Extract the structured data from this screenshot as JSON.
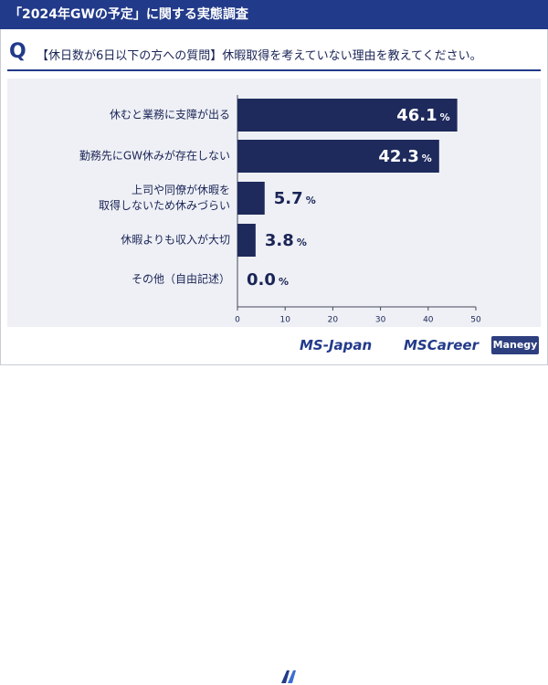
{
  "header": {
    "title": "「2024年GWの予定」に関する実態調査"
  },
  "question": {
    "letter": "Q",
    "text": "【休日数が6日以下の方への質問】休暇取得を考えていない理由を教えてください。"
  },
  "chart_data": {
    "type": "bar",
    "orientation": "horizontal",
    "categories": [
      [
        "休むと業務に支障が出る"
      ],
      [
        "勤務先にGW休みが存在しない"
      ],
      [
        "上司や同僚が休暇を",
        "取得しないため休みづらい"
      ],
      [
        "休暇よりも収入が大切"
      ],
      [
        "その他（自由記述）"
      ]
    ],
    "values": [
      46.1,
      42.3,
      5.7,
      3.8,
      0.0
    ],
    "value_labels": [
      "46.1",
      "42.3",
      "5.7",
      "3.8",
      "0.0"
    ],
    "unit": "%",
    "xlim": [
      0,
      50
    ],
    "xticks": [
      0,
      10,
      20,
      30,
      40,
      50
    ],
    "bar_color": "#1e2a5c",
    "label_color_inside": "#ffffff",
    "label_color_outside": "#1a2456",
    "grid": false
  },
  "footer": {
    "ms_japan": "MS-Japan",
    "ms_career": "MSCareer",
    "manegy": "Manegy"
  }
}
